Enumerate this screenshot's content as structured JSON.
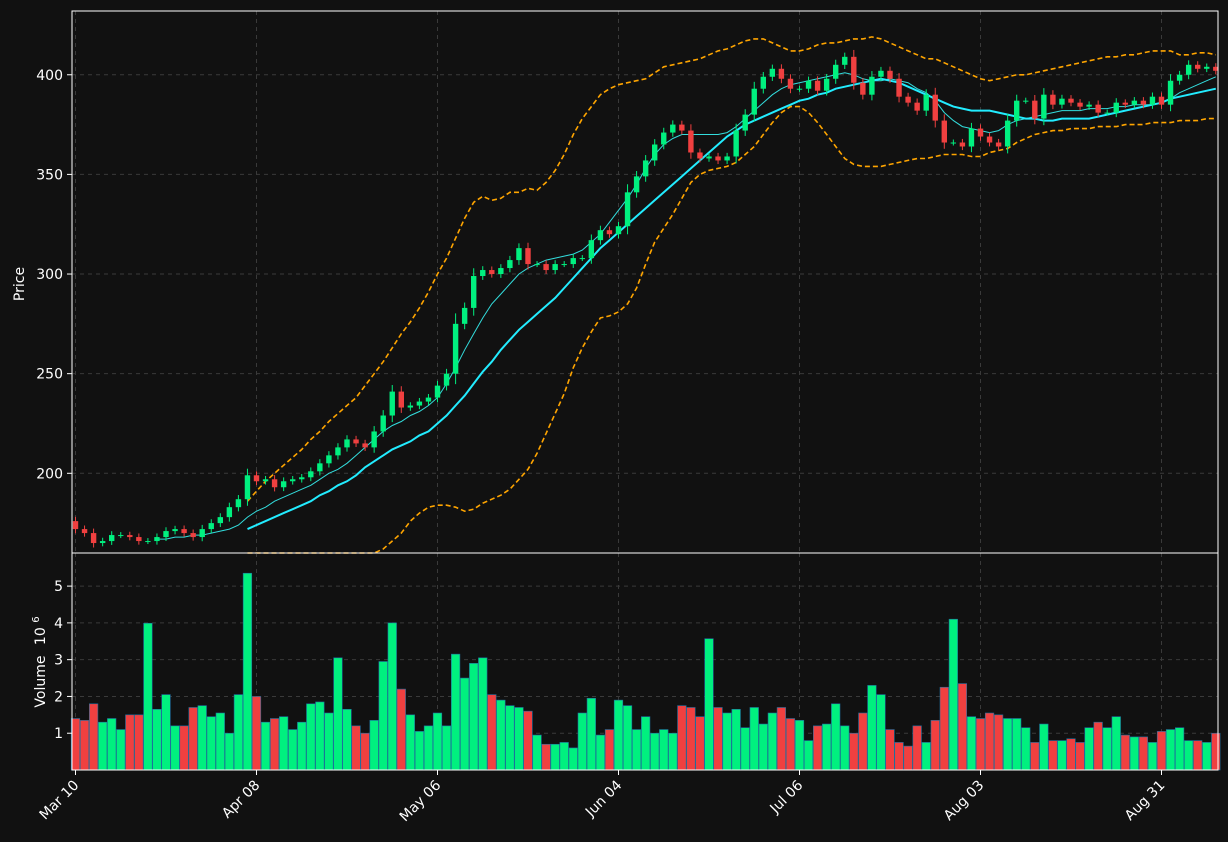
{
  "chart_data": {
    "type": "candlestick",
    "theme_colors": {
      "background": "#111111",
      "up": "#00f07f",
      "down": "#f04040",
      "ma_fast": "#33dddd",
      "ma_slow": "#22ecff",
      "bollinger": "#ffa500",
      "grid": "#3a3a3a",
      "axis": "#ffffff"
    },
    "price_panel": {
      "ylabel": "Price",
      "yticks": [
        200,
        250,
        300,
        350,
        400
      ],
      "ylim": [
        160,
        432
      ],
      "grid": true
    },
    "volume_panel": {
      "ylabel": "Volume",
      "yexponent": "10",
      "yexponent_power": "6",
      "yticks": [
        1,
        2,
        3,
        4,
        5
      ],
      "ylim": [
        0,
        5.9
      ],
      "grid": true
    },
    "xticks": [
      {
        "label": "Mar 10",
        "index": 0
      },
      {
        "label": "Apr 08",
        "index": 20
      },
      {
        "label": "May 06",
        "index": 40
      },
      {
        "label": "Jun 04",
        "index": 60
      },
      {
        "label": "Jul 06",
        "index": 80
      },
      {
        "label": "Aug 03",
        "index": 100
      },
      {
        "label": "Aug 31",
        "index": 120
      }
    ],
    "n_bars": 127,
    "close": [
      172,
      170,
      165,
      166,
      169,
      169,
      168,
      166,
      166,
      168,
      171,
      172,
      170,
      168,
      172,
      175,
      178,
      183,
      187,
      199,
      196,
      197,
      193,
      196,
      197,
      198,
      201,
      205,
      209,
      213,
      217,
      215,
      213,
      221,
      229,
      241,
      233,
      234,
      236,
      238,
      244,
      250,
      275,
      283,
      299,
      302,
      300,
      303,
      307,
      313,
      305,
      305,
      302,
      305,
      305,
      308,
      308,
      317,
      322,
      320,
      324,
      341,
      349,
      357,
      365,
      371,
      375,
      372,
      361,
      358,
      359,
      357,
      359,
      372,
      380,
      393,
      399,
      403,
      398,
      393,
      393,
      397,
      392,
      398,
      405,
      409,
      396,
      390,
      399,
      402,
      398,
      389,
      386,
      382,
      390,
      377,
      366,
      366,
      364,
      373,
      369,
      366,
      364,
      377,
      387,
      387,
      378,
      390,
      385,
      388,
      386,
      384,
      385,
      381,
      381,
      386,
      385,
      387,
      385,
      389,
      385,
      397,
      400,
      405,
      403,
      404,
      402
    ],
    "ma_fast": [
      null,
      null,
      null,
      null,
      null,
      null,
      null,
      null,
      null,
      167,
      167,
      168,
      168,
      169,
      169,
      170,
      171,
      172,
      174,
      178,
      181,
      183,
      186,
      188,
      190,
      192,
      194,
      197,
      200,
      202,
      205,
      209,
      213,
      217,
      221,
      224,
      226,
      229,
      231,
      234,
      238,
      245,
      253,
      262,
      270,
      278,
      285,
      290,
      295,
      300,
      303,
      305,
      307,
      308,
      309,
      310,
      312,
      316,
      320,
      326,
      332,
      338,
      345,
      353,
      360,
      365,
      368,
      370,
      370,
      370,
      370,
      370,
      371,
      374,
      378,
      382,
      386,
      390,
      393,
      395,
      396,
      397,
      398,
      399,
      400,
      401,
      400,
      398,
      397,
      397,
      398,
      397,
      396,
      393,
      391,
      387,
      381,
      377,
      374,
      373,
      372,
      371,
      372,
      375,
      377,
      378,
      379,
      380,
      381,
      382,
      382,
      382,
      383,
      383,
      383,
      384,
      384,
      385,
      385,
      385,
      386,
      388,
      391,
      393,
      395,
      397,
      399
    ],
    "ma_slow": [
      null,
      null,
      null,
      null,
      null,
      null,
      null,
      null,
      null,
      null,
      null,
      null,
      null,
      null,
      null,
      null,
      null,
      null,
      null,
      172,
      174,
      176,
      178,
      180,
      182,
      184,
      186,
      189,
      191,
      194,
      196,
      199,
      203,
      206,
      209,
      212,
      214,
      216,
      219,
      221,
      225,
      229,
      234,
      239,
      245,
      251,
      256,
      262,
      267,
      272,
      276,
      280,
      284,
      288,
      293,
      298,
      303,
      308,
      313,
      317,
      321,
      325,
      329,
      333,
      337,
      341,
      345,
      349,
      353,
      357,
      361,
      365,
      369,
      372,
      375,
      377,
      379,
      381,
      383,
      385,
      387,
      388,
      390,
      391,
      393,
      394,
      395,
      396,
      397,
      398,
      397,
      396,
      394,
      392,
      390,
      388,
      386,
      384,
      383,
      382,
      382,
      382,
      381,
      380,
      379,
      378,
      378,
      377,
      377,
      378,
      378,
      378,
      378,
      379,
      380,
      381,
      382,
      383,
      384,
      385,
      386,
      388,
      389,
      390,
      391,
      392,
      393
    ],
    "bb_upper": [
      null,
      null,
      null,
      null,
      null,
      null,
      null,
      null,
      null,
      null,
      null,
      null,
      null,
      null,
      null,
      null,
      null,
      null,
      null,
      186,
      191,
      196,
      200,
      204,
      208,
      212,
      217,
      221,
      226,
      230,
      234,
      238,
      244,
      250,
      256,
      263,
      270,
      276,
      283,
      291,
      300,
      308,
      318,
      328,
      336,
      339,
      337,
      338,
      341,
      341,
      343,
      342,
      346,
      352,
      360,
      370,
      378,
      384,
      390,
      393,
      395,
      396,
      397,
      398,
      401,
      404,
      405,
      406,
      407,
      408,
      410,
      412,
      413,
      415,
      417,
      418,
      418,
      416,
      414,
      412,
      412,
      413,
      415,
      416,
      416,
      417,
      418,
      418,
      419,
      418,
      416,
      414,
      412,
      410,
      408,
      408,
      406,
      404,
      402,
      400,
      398,
      397,
      398,
      399,
      400,
      400,
      401,
      402,
      403,
      404,
      405,
      406,
      407,
      408,
      409,
      409,
      410,
      410,
      411,
      412,
      412,
      412,
      410,
      410,
      411,
      411,
      410
    ],
    "bb_lower": [
      null,
      null,
      null,
      null,
      null,
      null,
      null,
      null,
      null,
      null,
      null,
      null,
      null,
      null,
      null,
      null,
      null,
      null,
      null,
      158,
      158,
      158,
      158,
      158,
      158,
      158,
      158,
      158,
      158,
      158,
      158,
      158,
      158,
      160,
      162,
      166,
      170,
      176,
      180,
      183,
      184,
      184,
      183,
      181,
      182,
      185,
      187,
      189,
      192,
      197,
      202,
      210,
      220,
      230,
      240,
      253,
      263,
      271,
      278,
      279,
      281,
      285,
      293,
      305,
      316,
      323,
      330,
      338,
      346,
      350,
      352,
      353,
      354,
      356,
      360,
      364,
      370,
      376,
      381,
      384,
      384,
      381,
      376,
      370,
      364,
      358,
      355,
      354,
      354,
      354,
      355,
      356,
      357,
      358,
      358,
      359,
      360,
      360,
      360,
      359,
      359,
      361,
      362,
      363,
      366,
      368,
      370,
      371,
      372,
      372,
      373,
      373,
      373,
      374,
      374,
      374,
      375,
      375,
      375,
      376,
      376,
      376,
      377,
      377,
      377,
      378,
      378
    ],
    "volume": [
      1.4,
      1.35,
      1.8,
      1.3,
      1.4,
      1.1,
      1.5,
      1.5,
      3.99,
      1.65,
      2.05,
      1.2,
      1.2,
      1.7,
      1.75,
      1.45,
      1.55,
      1.0,
      2.05,
      5.35,
      2.0,
      1.3,
      1.4,
      1.45,
      1.1,
      1.3,
      1.8,
      1.85,
      1.55,
      3.05,
      1.65,
      1.2,
      1.0,
      1.35,
      2.95,
      4.0,
      2.2,
      1.5,
      1.05,
      1.2,
      1.55,
      1.2,
      3.15,
      2.5,
      2.9,
      3.05,
      2.05,
      1.9,
      1.75,
      1.7,
      1.6,
      0.95,
      0.7,
      0.7,
      0.75,
      0.6,
      1.55,
      1.95,
      0.95,
      1.1,
      1.9,
      1.75,
      1.1,
      1.45,
      1.0,
      1.1,
      1.0,
      1.75,
      1.7,
      1.45,
      3.57,
      1.7,
      1.55,
      1.65,
      1.15,
      1.7,
      1.25,
      1.55,
      1.7,
      1.4,
      1.35,
      0.8,
      1.2,
      1.25,
      1.8,
      1.2,
      1.0,
      1.55,
      2.3,
      2.05,
      1.1,
      0.75,
      0.65,
      1.2,
      0.75,
      1.35,
      2.25,
      4.1,
      2.35,
      1.45,
      1.4,
      1.55,
      1.5,
      1.4,
      1.4,
      1.15,
      0.75,
      1.25,
      0.8,
      0.8,
      0.85,
      0.75,
      1.15,
      1.3,
      1.15,
      1.45,
      0.95,
      0.9,
      0.9,
      0.75,
      1.05,
      1.1,
      1.15,
      0.8,
      0.8,
      0.75,
      1.0
    ]
  }
}
